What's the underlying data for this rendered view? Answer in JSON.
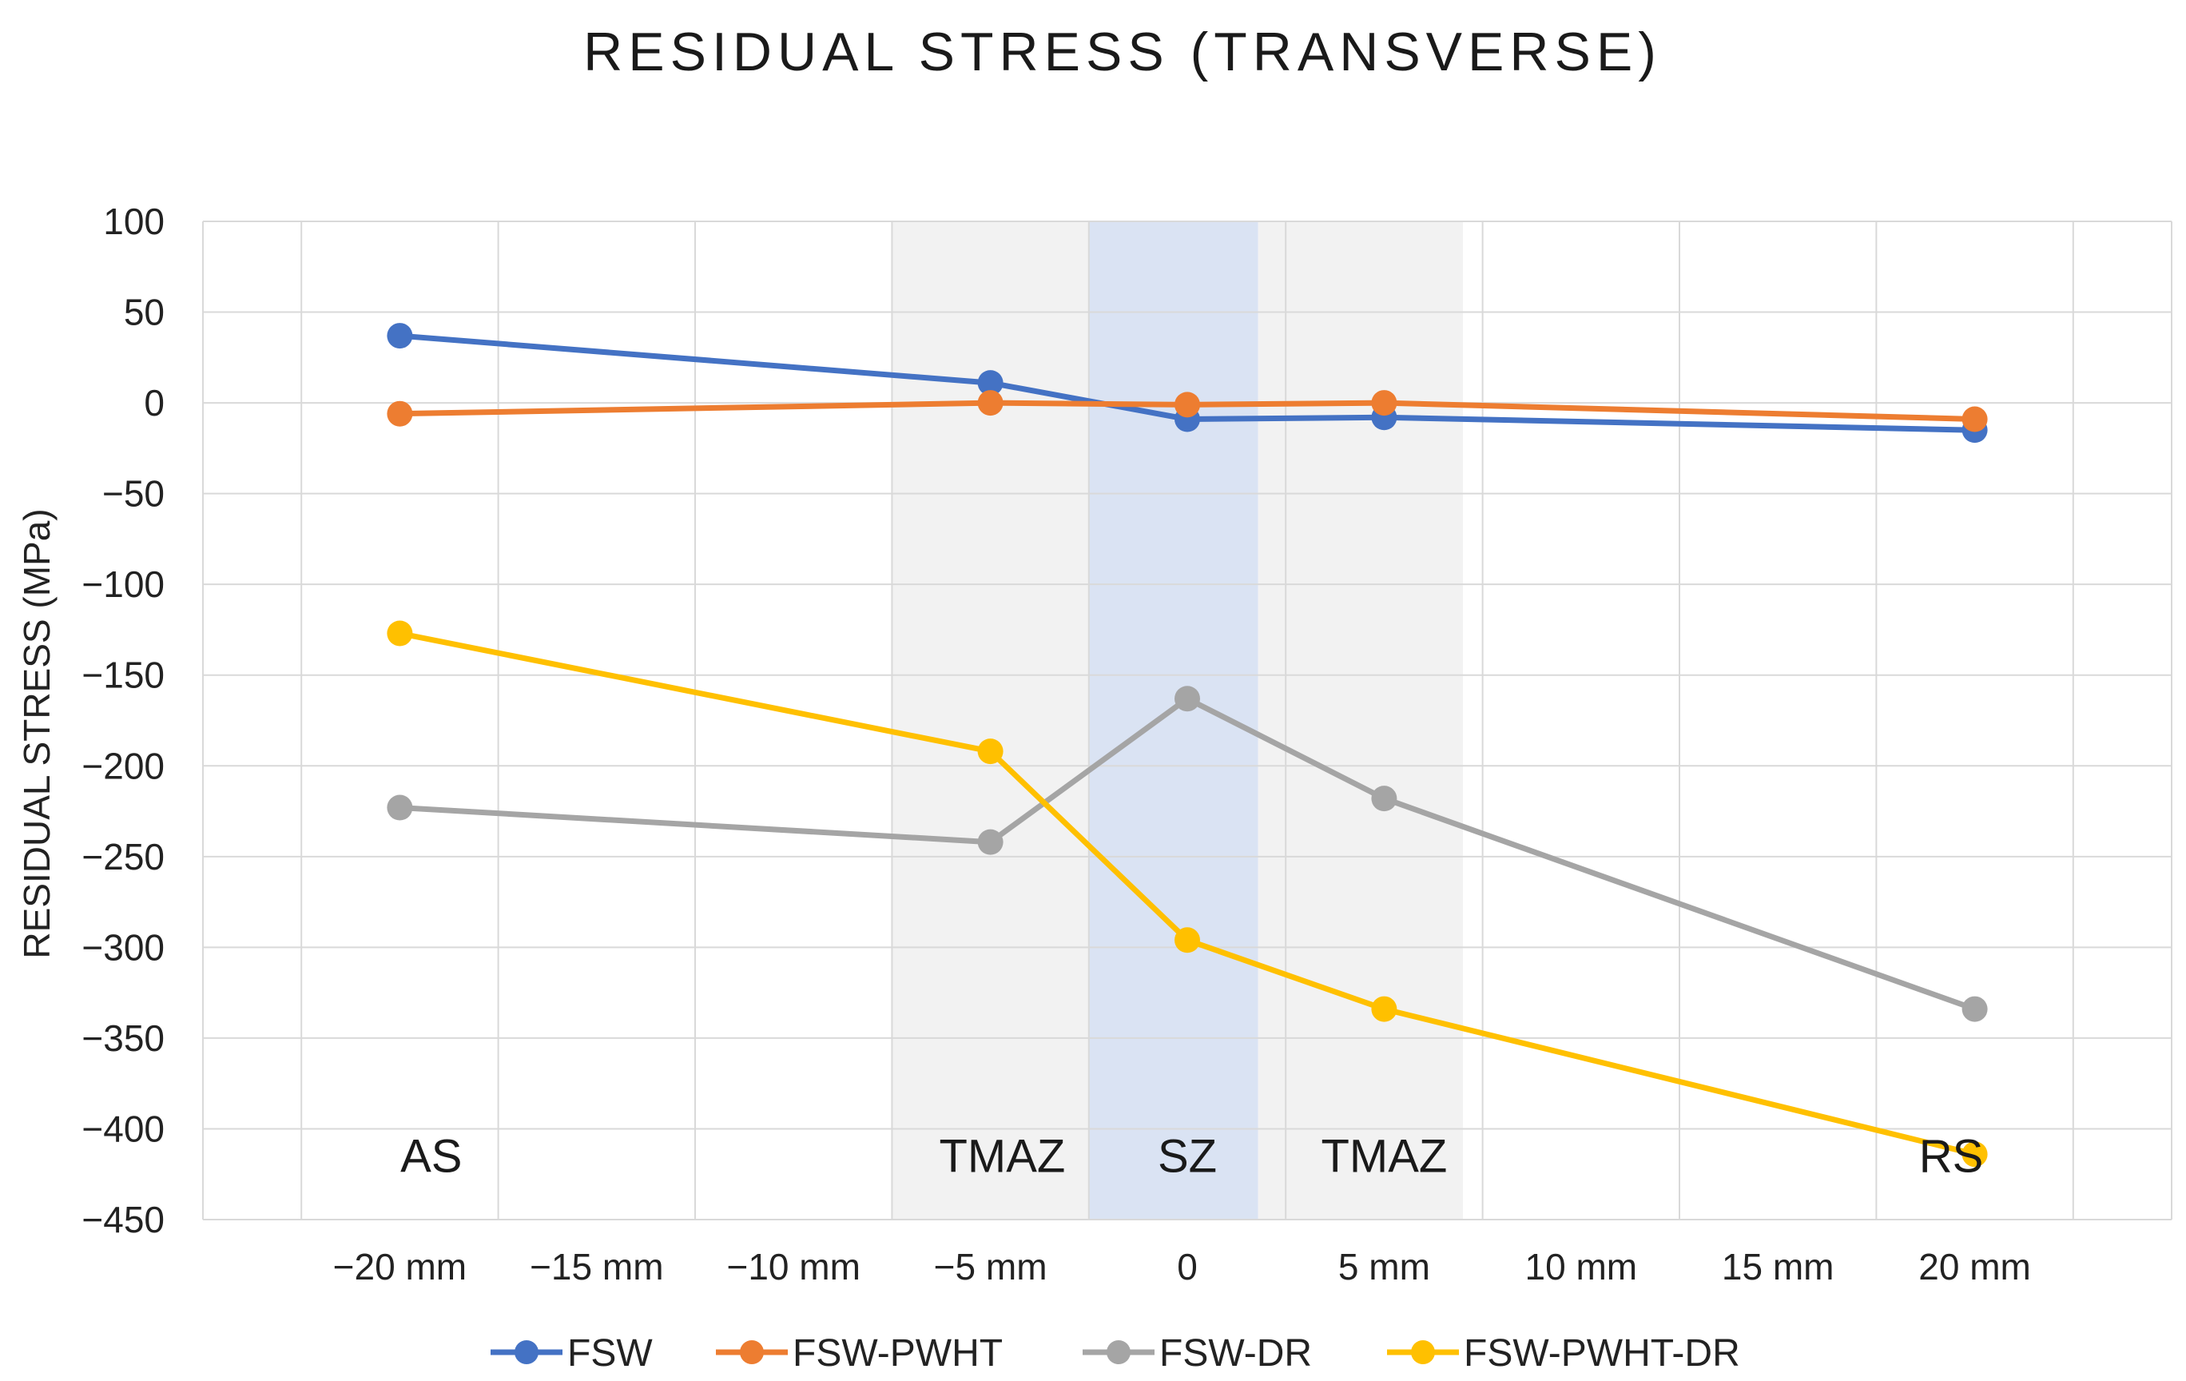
{
  "chart_data": {
    "type": "line",
    "title": "RESIDUAL STRESS (TRANSVERSE)",
    "xlabel": "",
    "ylabel": "RESIDUAL STRESS (MPa)",
    "ylim": [
      -450,
      100
    ],
    "xlim": [
      -25,
      25
    ],
    "grid": true,
    "legend": "bottom",
    "x_ticks": [
      {
        "value": -20,
        "label": "−20 mm"
      },
      {
        "value": -15,
        "label": "−15 mm"
      },
      {
        "value": -10,
        "label": "−10 mm"
      },
      {
        "value": -5,
        "label": "−5 mm"
      },
      {
        "value": 0,
        "label": "0"
      },
      {
        "value": 5,
        "label": "5 mm"
      },
      {
        "value": 10,
        "label": "10 mm"
      },
      {
        "value": 15,
        "label": "15 mm"
      },
      {
        "value": 20,
        "label": "20 mm"
      }
    ],
    "y_ticks": [
      {
        "value": 100,
        "label": "100"
      },
      {
        "value": 50,
        "label": "50"
      },
      {
        "value": 0,
        "label": "0"
      },
      {
        "value": -50,
        "label": "−50"
      },
      {
        "value": -100,
        "label": "−100"
      },
      {
        "value": -150,
        "label": "−150"
      },
      {
        "value": -200,
        "label": "−200"
      },
      {
        "value": -250,
        "label": "−250"
      },
      {
        "value": -300,
        "label": "−300"
      },
      {
        "value": -350,
        "label": "−350"
      },
      {
        "value": -400,
        "label": "−400"
      },
      {
        "value": -450,
        "label": "−450"
      }
    ],
    "x": [
      -20,
      -5,
      0,
      5,
      20
    ],
    "series": [
      {
        "name": "FSW",
        "color": "#4472C4",
        "values": [
          37,
          11,
          -9,
          -8,
          -15
        ]
      },
      {
        "name": "FSW-PWHT",
        "color": "#ED7D31",
        "values": [
          -6,
          0,
          -1,
          0,
          -9
        ]
      },
      {
        "name": "FSW-DR",
        "color": "#A5A5A5",
        "values": [
          -223,
          -242,
          -163,
          -218,
          -334
        ]
      },
      {
        "name": "FSW-PWHT-DR",
        "color": "#FFC000",
        "values": [
          -127,
          -192,
          -296,
          -334,
          -414
        ]
      }
    ],
    "regions": [
      {
        "from": -7.5,
        "to": -2.5,
        "color": "#f2f2f2"
      },
      {
        "from": -2.5,
        "to": 1.8,
        "color": "#dae3f3"
      },
      {
        "from": 1.8,
        "to": 7.0,
        "color": "#f2f2f2"
      }
    ],
    "annotations": [
      {
        "text": "AS",
        "x": -19.2,
        "y": -415
      },
      {
        "text": "TMAZ",
        "x": -4.7,
        "y": -415
      },
      {
        "text": "SZ",
        "x": 0,
        "y": -415
      },
      {
        "text": "TMAZ",
        "x": 5,
        "y": -415
      },
      {
        "text": "RS",
        "x": 19.4,
        "y": -415
      }
    ]
  }
}
